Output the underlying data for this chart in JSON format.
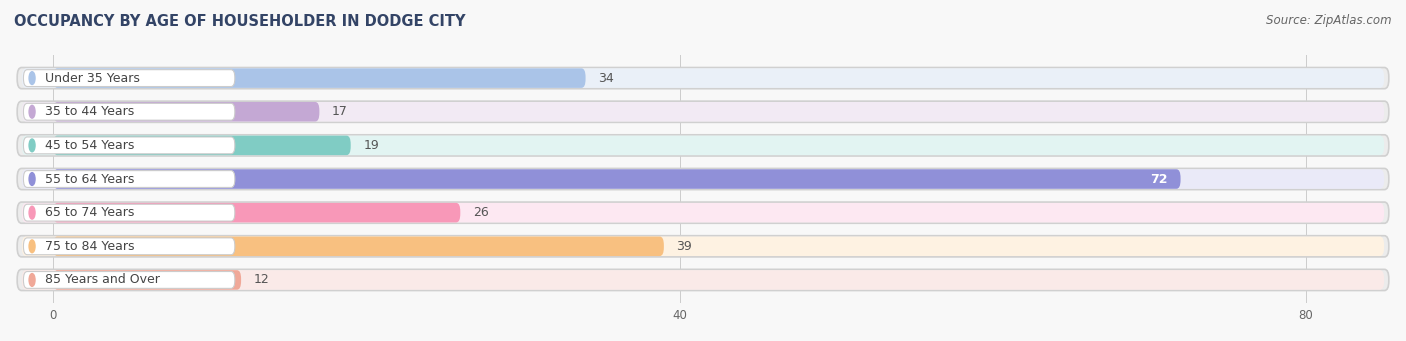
{
  "title": "OCCUPANCY BY AGE OF HOUSEHOLDER IN DODGE CITY",
  "source": "Source: ZipAtlas.com",
  "categories": [
    "Under 35 Years",
    "35 to 44 Years",
    "45 to 54 Years",
    "55 to 64 Years",
    "65 to 74 Years",
    "75 to 84 Years",
    "85 Years and Over"
  ],
  "values": [
    34,
    17,
    19,
    72,
    26,
    39,
    12
  ],
  "bar_colors": [
    "#aac4e8",
    "#c4a8d4",
    "#80ccc4",
    "#9090d8",
    "#f898b8",
    "#f8c080",
    "#f0a898"
  ],
  "bar_bg_colors": [
    "#eaf0f8",
    "#f2eaf4",
    "#e2f4f2",
    "#eaeaf8",
    "#fde8f2",
    "#fef2e2",
    "#faeae8"
  ],
  "label_bg_color": "#ffffff",
  "label_border_color": "#dddddd",
  "xlim_min": -2,
  "xlim_max": 85,
  "xticks": [
    0,
    40,
    80
  ],
  "title_fontsize": 10.5,
  "source_fontsize": 8.5,
  "label_fontsize": 9,
  "value_fontsize": 9,
  "background_color": "#f8f8f8",
  "bar_height": 0.58,
  "value_color_inside": "#ffffff",
  "value_color_outside": "#555555",
  "grid_color": "#cccccc",
  "title_color": "#334466",
  "label_text_color": "#444444"
}
